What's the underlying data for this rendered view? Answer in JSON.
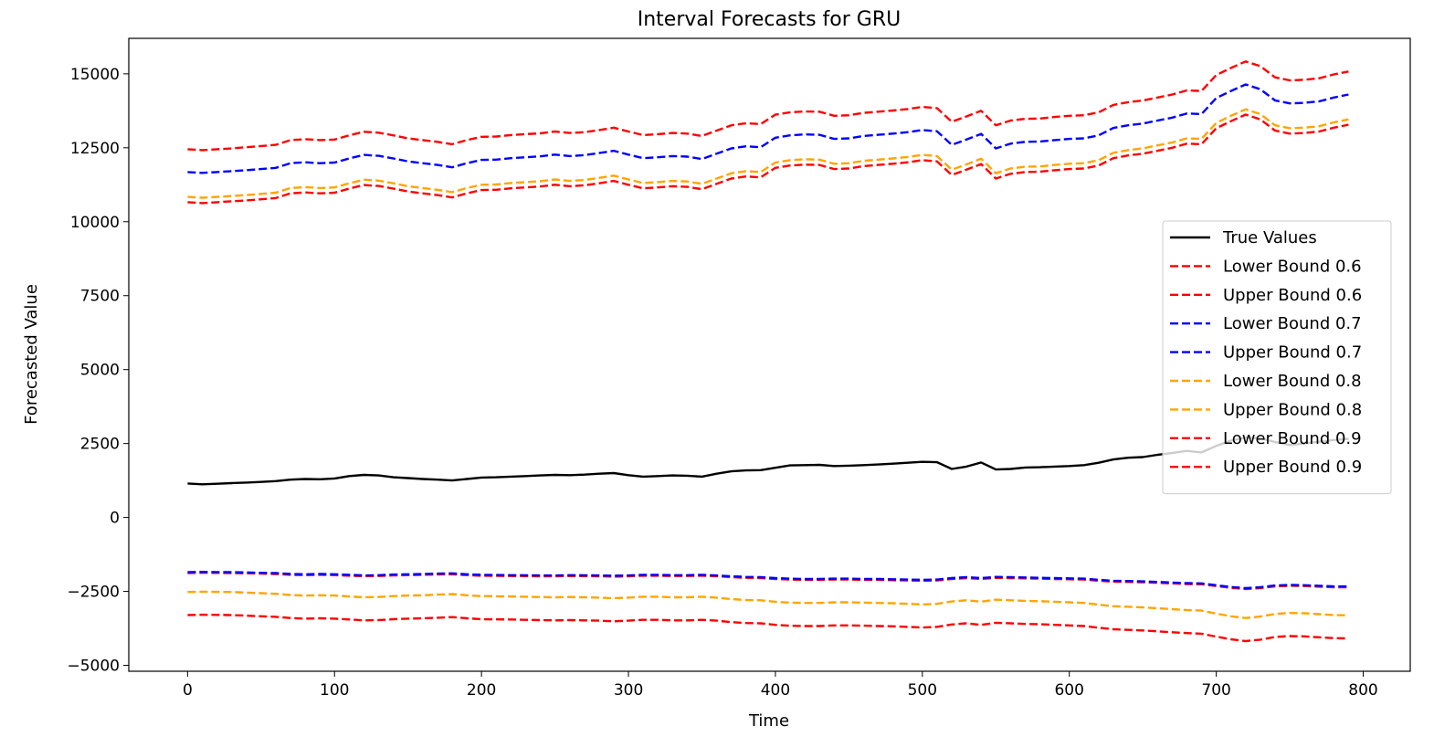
{
  "chart_data": {
    "type": "line",
    "title": "Interval Forecasts for GRU",
    "xlabel": "Time",
    "ylabel": "Forecasted Value",
    "xlim": [
      -40,
      832
    ],
    "ylim": [
      -5200,
      16200
    ],
    "xticks": [
      0,
      100,
      200,
      300,
      400,
      500,
      600,
      700,
      800
    ],
    "yticks": [
      -5000,
      -2500,
      0,
      2500,
      5000,
      7500,
      10000,
      12500,
      15000
    ],
    "ytick_labels": [
      "−5000",
      "−2500",
      "0",
      "2500",
      "5000",
      "7500",
      "10000",
      "12500",
      "15000"
    ],
    "grid": false,
    "legend_position": "center-right",
    "x": [
      0,
      10,
      20,
      30,
      40,
      50,
      60,
      70,
      80,
      90,
      100,
      110,
      120,
      130,
      140,
      150,
      160,
      170,
      180,
      190,
      200,
      210,
      220,
      230,
      240,
      250,
      260,
      270,
      280,
      290,
      300,
      310,
      320,
      330,
      340,
      350,
      360,
      370,
      380,
      390,
      400,
      410,
      420,
      430,
      440,
      450,
      460,
      470,
      480,
      490,
      500,
      510,
      520,
      530,
      540,
      550,
      560,
      570,
      580,
      590,
      600,
      610,
      620,
      630,
      640,
      650,
      660,
      670,
      680,
      690,
      700,
      710,
      720,
      730,
      740,
      750,
      760,
      770,
      780,
      790
    ],
    "series": [
      {
        "name": "True Values",
        "color": "#000000",
        "style": "solid",
        "values": [
          1150,
          1120,
          1140,
          1160,
          1180,
          1200,
          1230,
          1280,
          1300,
          1290,
          1320,
          1400,
          1440,
          1420,
          1360,
          1330,
          1300,
          1280,
          1250,
          1300,
          1350,
          1360,
          1380,
          1400,
          1420,
          1440,
          1430,
          1450,
          1480,
          1500,
          1430,
          1380,
          1400,
          1420,
          1410,
          1380,
          1480,
          1560,
          1590,
          1600,
          1680,
          1760,
          1770,
          1780,
          1740,
          1750,
          1770,
          1790,
          1820,
          1850,
          1880,
          1870,
          1640,
          1720,
          1860,
          1620,
          1640,
          1690,
          1700,
          1720,
          1740,
          1770,
          1850,
          1960,
          2020,
          2040,
          2120,
          2180,
          2250,
          2200,
          2420,
          2600,
          2700,
          2680,
          2550,
          2450,
          2500,
          2560,
          2620,
          2660
        ]
      },
      {
        "name": "Lower Bound 0.6",
        "color": "#ff0000",
        "style": "dashed",
        "values": [
          -1880,
          -1870,
          -1875,
          -1880,
          -1890,
          -1900,
          -1910,
          -1940,
          -1950,
          -1940,
          -1950,
          -1970,
          -1990,
          -1980,
          -1960,
          -1950,
          -1940,
          -1930,
          -1920,
          -1950,
          -1970,
          -1975,
          -1980,
          -1985,
          -1990,
          -1990,
          -1980,
          -1985,
          -1990,
          -2000,
          -1990,
          -1970,
          -1970,
          -1980,
          -1980,
          -1970,
          -1990,
          -2020,
          -2040,
          -2050,
          -2080,
          -2100,
          -2110,
          -2110,
          -2100,
          -2100,
          -2110,
          -2110,
          -2120,
          -2130,
          -2140,
          -2130,
          -2080,
          -2050,
          -2080,
          -2040,
          -2050,
          -2060,
          -2070,
          -2080,
          -2090,
          -2100,
          -2140,
          -2170,
          -2180,
          -2190,
          -2210,
          -2230,
          -2250,
          -2260,
          -2320,
          -2380,
          -2420,
          -2390,
          -2330,
          -2310,
          -2320,
          -2340,
          -2360,
          -2360
        ]
      },
      {
        "name": "Upper Bound 0.6",
        "color": "#ff0000",
        "style": "dashed",
        "values": [
          12450,
          12420,
          12450,
          12480,
          12520,
          12560,
          12600,
          12760,
          12790,
          12760,
          12780,
          12920,
          13040,
          13010,
          12920,
          12820,
          12760,
          12700,
          12620,
          12760,
          12870,
          12880,
          12930,
          12960,
          12990,
          13050,
          13000,
          13030,
          13100,
          13180,
          13050,
          12930,
          12960,
          13000,
          12980,
          12900,
          13080,
          13260,
          13330,
          13300,
          13620,
          13700,
          13730,
          13720,
          13580,
          13600,
          13680,
          13720,
          13760,
          13810,
          13880,
          13840,
          13380,
          13560,
          13750,
          13260,
          13420,
          13480,
          13490,
          13540,
          13580,
          13600,
          13700,
          13950,
          14040,
          14100,
          14200,
          14300,
          14440,
          14420,
          14960,
          15200,
          15420,
          15260,
          14880,
          14780,
          14800,
          14850,
          14980,
          15080
        ]
      },
      {
        "name": "Lower Bound 0.7",
        "color": "#0000ff",
        "style": "dashed",
        "values": [
          -1850,
          -1840,
          -1845,
          -1850,
          -1860,
          -1870,
          -1880,
          -1910,
          -1920,
          -1910,
          -1920,
          -1940,
          -1960,
          -1950,
          -1930,
          -1920,
          -1910,
          -1900,
          -1890,
          -1920,
          -1940,
          -1945,
          -1950,
          -1955,
          -1960,
          -1960,
          -1950,
          -1955,
          -1960,
          -1970,
          -1960,
          -1940,
          -1940,
          -1950,
          -1950,
          -1940,
          -1960,
          -1990,
          -2010,
          -2020,
          -2050,
          -2070,
          -2080,
          -2080,
          -2070,
          -2070,
          -2080,
          -2080,
          -2090,
          -2100,
          -2110,
          -2100,
          -2050,
          -2020,
          -2050,
          -2010,
          -2020,
          -2030,
          -2040,
          -2050,
          -2060,
          -2070,
          -2110,
          -2140,
          -2150,
          -2160,
          -2180,
          -2200,
          -2220,
          -2230,
          -2290,
          -2350,
          -2390,
          -2360,
          -2300,
          -2280,
          -2290,
          -2310,
          -2330,
          -2330
        ]
      },
      {
        "name": "Upper Bound 0.7",
        "color": "#0000ff",
        "style": "dashed",
        "values": [
          11680,
          11650,
          11680,
          11710,
          11740,
          11780,
          11820,
          11980,
          12010,
          11980,
          12000,
          12140,
          12260,
          12230,
          12140,
          12040,
          11980,
          11920,
          11840,
          11980,
          12090,
          12100,
          12150,
          12180,
          12210,
          12270,
          12220,
          12250,
          12320,
          12400,
          12270,
          12150,
          12180,
          12220,
          12200,
          12120,
          12300,
          12480,
          12550,
          12520,
          12840,
          12920,
          12950,
          12940,
          12800,
          12820,
          12900,
          12940,
          12980,
          13030,
          13100,
          13060,
          12600,
          12780,
          12970,
          12480,
          12640,
          12700,
          12710,
          12760,
          12800,
          12820,
          12920,
          13170,
          13260,
          13320,
          13420,
          13520,
          13660,
          13640,
          14180,
          14420,
          14640,
          14480,
          14100,
          14000,
          14020,
          14070,
          14200,
          14300
        ]
      },
      {
        "name": "Lower Bound 0.8",
        "color": "#ffa500",
        "style": "dashed",
        "values": [
          -2520,
          -2510,
          -2515,
          -2520,
          -2540,
          -2560,
          -2580,
          -2620,
          -2640,
          -2630,
          -2640,
          -2670,
          -2700,
          -2690,
          -2660,
          -2640,
          -2630,
          -2610,
          -2590,
          -2630,
          -2660,
          -2665,
          -2670,
          -2680,
          -2690,
          -2700,
          -2690,
          -2700,
          -2710,
          -2730,
          -2710,
          -2680,
          -2680,
          -2700,
          -2700,
          -2680,
          -2710,
          -2760,
          -2790,
          -2800,
          -2850,
          -2880,
          -2890,
          -2890,
          -2870,
          -2870,
          -2880,
          -2890,
          -2900,
          -2920,
          -2940,
          -2920,
          -2840,
          -2800,
          -2850,
          -2780,
          -2800,
          -2820,
          -2830,
          -2850,
          -2870,
          -2890,
          -2950,
          -3000,
          -3020,
          -3040,
          -3070,
          -3100,
          -3130,
          -3150,
          -3250,
          -3340,
          -3400,
          -3350,
          -3260,
          -3230,
          -3240,
          -3270,
          -3300,
          -3310
        ]
      },
      {
        "name": "Upper Bound 0.8",
        "color": "#ffa500",
        "style": "dashed",
        "values": [
          10840,
          10810,
          10840,
          10870,
          10900,
          10940,
          10980,
          11140,
          11170,
          11140,
          11160,
          11300,
          11420,
          11390,
          11300,
          11200,
          11140,
          11080,
          11000,
          11140,
          11250,
          11260,
          11310,
          11340,
          11370,
          11430,
          11380,
          11410,
          11480,
          11560,
          11430,
          11310,
          11340,
          11380,
          11360,
          11280,
          11460,
          11640,
          11710,
          11680,
          12000,
          12080,
          12110,
          12100,
          11960,
          11980,
          12060,
          12100,
          12140,
          12190,
          12260,
          12220,
          11760,
          11940,
          12130,
          11640,
          11800,
          11860,
          11870,
          11920,
          11960,
          11980,
          12080,
          12330,
          12420,
          12480,
          12580,
          12680,
          12820,
          12800,
          13340,
          13580,
          13800,
          13640,
          13260,
          13160,
          13180,
          13230,
          13360,
          13460
        ]
      },
      {
        "name": "Lower Bound 0.9",
        "color": "#ff0000",
        "style": "dashed",
        "values": [
          -3300,
          -3290,
          -3295,
          -3300,
          -3320,
          -3340,
          -3360,
          -3400,
          -3420,
          -3410,
          -3420,
          -3450,
          -3480,
          -3470,
          -3440,
          -3420,
          -3410,
          -3390,
          -3370,
          -3410,
          -3440,
          -3445,
          -3450,
          -3460,
          -3470,
          -3480,
          -3470,
          -3480,
          -3490,
          -3510,
          -3490,
          -3460,
          -3460,
          -3480,
          -3480,
          -3460,
          -3490,
          -3540,
          -3570,
          -3580,
          -3630,
          -3660,
          -3670,
          -3670,
          -3650,
          -3650,
          -3660,
          -3670,
          -3680,
          -3700,
          -3720,
          -3700,
          -3620,
          -3580,
          -3630,
          -3560,
          -3580,
          -3600,
          -3610,
          -3630,
          -3650,
          -3670,
          -3730,
          -3780,
          -3800,
          -3820,
          -3850,
          -3880,
          -3910,
          -3930,
          -4030,
          -4120,
          -4180,
          -4130,
          -4040,
          -4010,
          -4020,
          -4050,
          -4080,
          -4090
        ]
      },
      {
        "name": "Upper Bound 0.9",
        "color": "#ff0000",
        "style": "dashed",
        "values": [
          10660,
          10630,
          10660,
          10690,
          10720,
          10760,
          10800,
          10960,
          10990,
          10960,
          10980,
          11120,
          11240,
          11210,
          11120,
          11020,
          10960,
          10900,
          10820,
          10960,
          11070,
          11080,
          11130,
          11160,
          11190,
          11250,
          11200,
          11230,
          11300,
          11380,
          11250,
          11130,
          11160,
          11200,
          11180,
          11100,
          11280,
          11460,
          11530,
          11500,
          11820,
          11900,
          11930,
          11920,
          11780,
          11800,
          11880,
          11920,
          11960,
          12010,
          12080,
          12040,
          11580,
          11760,
          11950,
          11460,
          11620,
          11680,
          11690,
          11740,
          11780,
          11800,
          11900,
          12150,
          12240,
          12300,
          12400,
          12500,
          12640,
          12620,
          13160,
          13400,
          13620,
          13460,
          13080,
          12980,
          13000,
          13050,
          13180,
          13280
        ]
      }
    ]
  }
}
